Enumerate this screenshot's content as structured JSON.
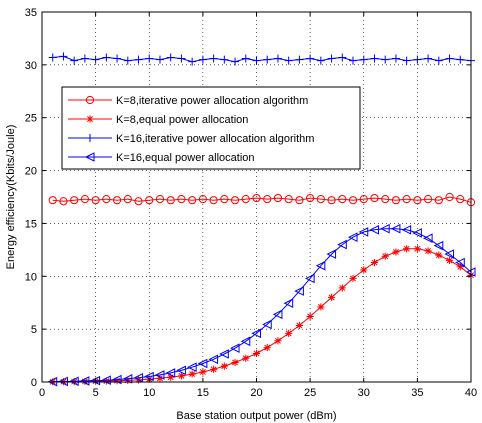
{
  "chart_data": {
    "type": "line",
    "title": "",
    "xlabel": "Base station output power (dBm)",
    "ylabel": "Energy efficiency(Kbits/Joule)",
    "xlim": [
      0,
      40
    ],
    "ylim": [
      0,
      35
    ],
    "xticks": [
      0,
      5,
      10,
      15,
      20,
      25,
      30,
      35,
      40
    ],
    "yticks": [
      0,
      5,
      10,
      15,
      20,
      25,
      30,
      35
    ],
    "grid": true,
    "legend_position": "upper-left",
    "x": [
      1,
      2,
      3,
      4,
      5,
      6,
      7,
      8,
      9,
      10,
      11,
      12,
      13,
      14,
      15,
      16,
      17,
      18,
      19,
      20,
      21,
      22,
      23,
      24,
      25,
      26,
      27,
      28,
      29,
      30,
      31,
      32,
      33,
      34,
      35,
      36,
      37,
      38,
      39,
      40
    ],
    "series": [
      {
        "name": "K=8,iterative power allocation algorithm",
        "color": "#ff0000",
        "marker": "circle",
        "values": [
          17.2,
          17.1,
          17.2,
          17.3,
          17.2,
          17.3,
          17.2,
          17.3,
          17.1,
          17.2,
          17.3,
          17.2,
          17.3,
          17.2,
          17.3,
          17.2,
          17.3,
          17.2,
          17.3,
          17.4,
          17.3,
          17.4,
          17.3,
          17.2,
          17.4,
          17.3,
          17.2,
          17.3,
          17.2,
          17.3,
          17.4,
          17.3,
          17.2,
          17.3,
          17.2,
          17.3,
          17.2,
          17.5,
          17.3,
          17.0
        ]
      },
      {
        "name": "K=8,equal power allocation",
        "color": "#ff0000",
        "marker": "star",
        "values": [
          0.02,
          0.03,
          0.04,
          0.05,
          0.07,
          0.09,
          0.12,
          0.15,
          0.2,
          0.27,
          0.35,
          0.45,
          0.58,
          0.75,
          0.95,
          1.2,
          1.5,
          1.85,
          2.25,
          2.7,
          3.25,
          3.9,
          4.6,
          5.35,
          6.2,
          7.1,
          8.0,
          8.9,
          9.8,
          10.6,
          11.3,
          11.9,
          12.3,
          12.6,
          12.6,
          12.4,
          12.0,
          11.5,
          10.9,
          10.1
        ]
      },
      {
        "name": "K=16,iterative power allocation algorithm",
        "color": "#0000ff",
        "marker": "plus",
        "values": [
          30.7,
          30.8,
          30.4,
          30.6,
          30.5,
          30.7,
          30.6,
          30.4,
          30.5,
          30.6,
          30.5,
          30.7,
          30.6,
          30.3,
          30.5,
          30.6,
          30.5,
          30.3,
          30.6,
          30.4,
          30.5,
          30.6,
          30.4,
          30.5,
          30.6,
          30.4,
          30.6,
          30.7,
          30.4,
          30.5,
          30.6,
          30.5,
          30.6,
          30.4,
          30.5,
          30.6,
          30.4,
          30.6,
          30.5,
          30.4
        ]
      },
      {
        "name": "K=16,equal power allocation",
        "color": "#0000ff",
        "marker": "triangle-left",
        "values": [
          0.03,
          0.05,
          0.07,
          0.1,
          0.13,
          0.17,
          0.23,
          0.3,
          0.4,
          0.52,
          0.67,
          0.86,
          1.1,
          1.4,
          1.75,
          2.15,
          2.65,
          3.2,
          3.85,
          4.6,
          5.45,
          6.4,
          7.45,
          8.6,
          9.8,
          11.0,
          12.1,
          13.0,
          13.7,
          14.2,
          14.4,
          14.5,
          14.5,
          14.4,
          14.1,
          13.6,
          12.9,
          12.1,
          11.3,
          10.4
        ]
      }
    ]
  }
}
